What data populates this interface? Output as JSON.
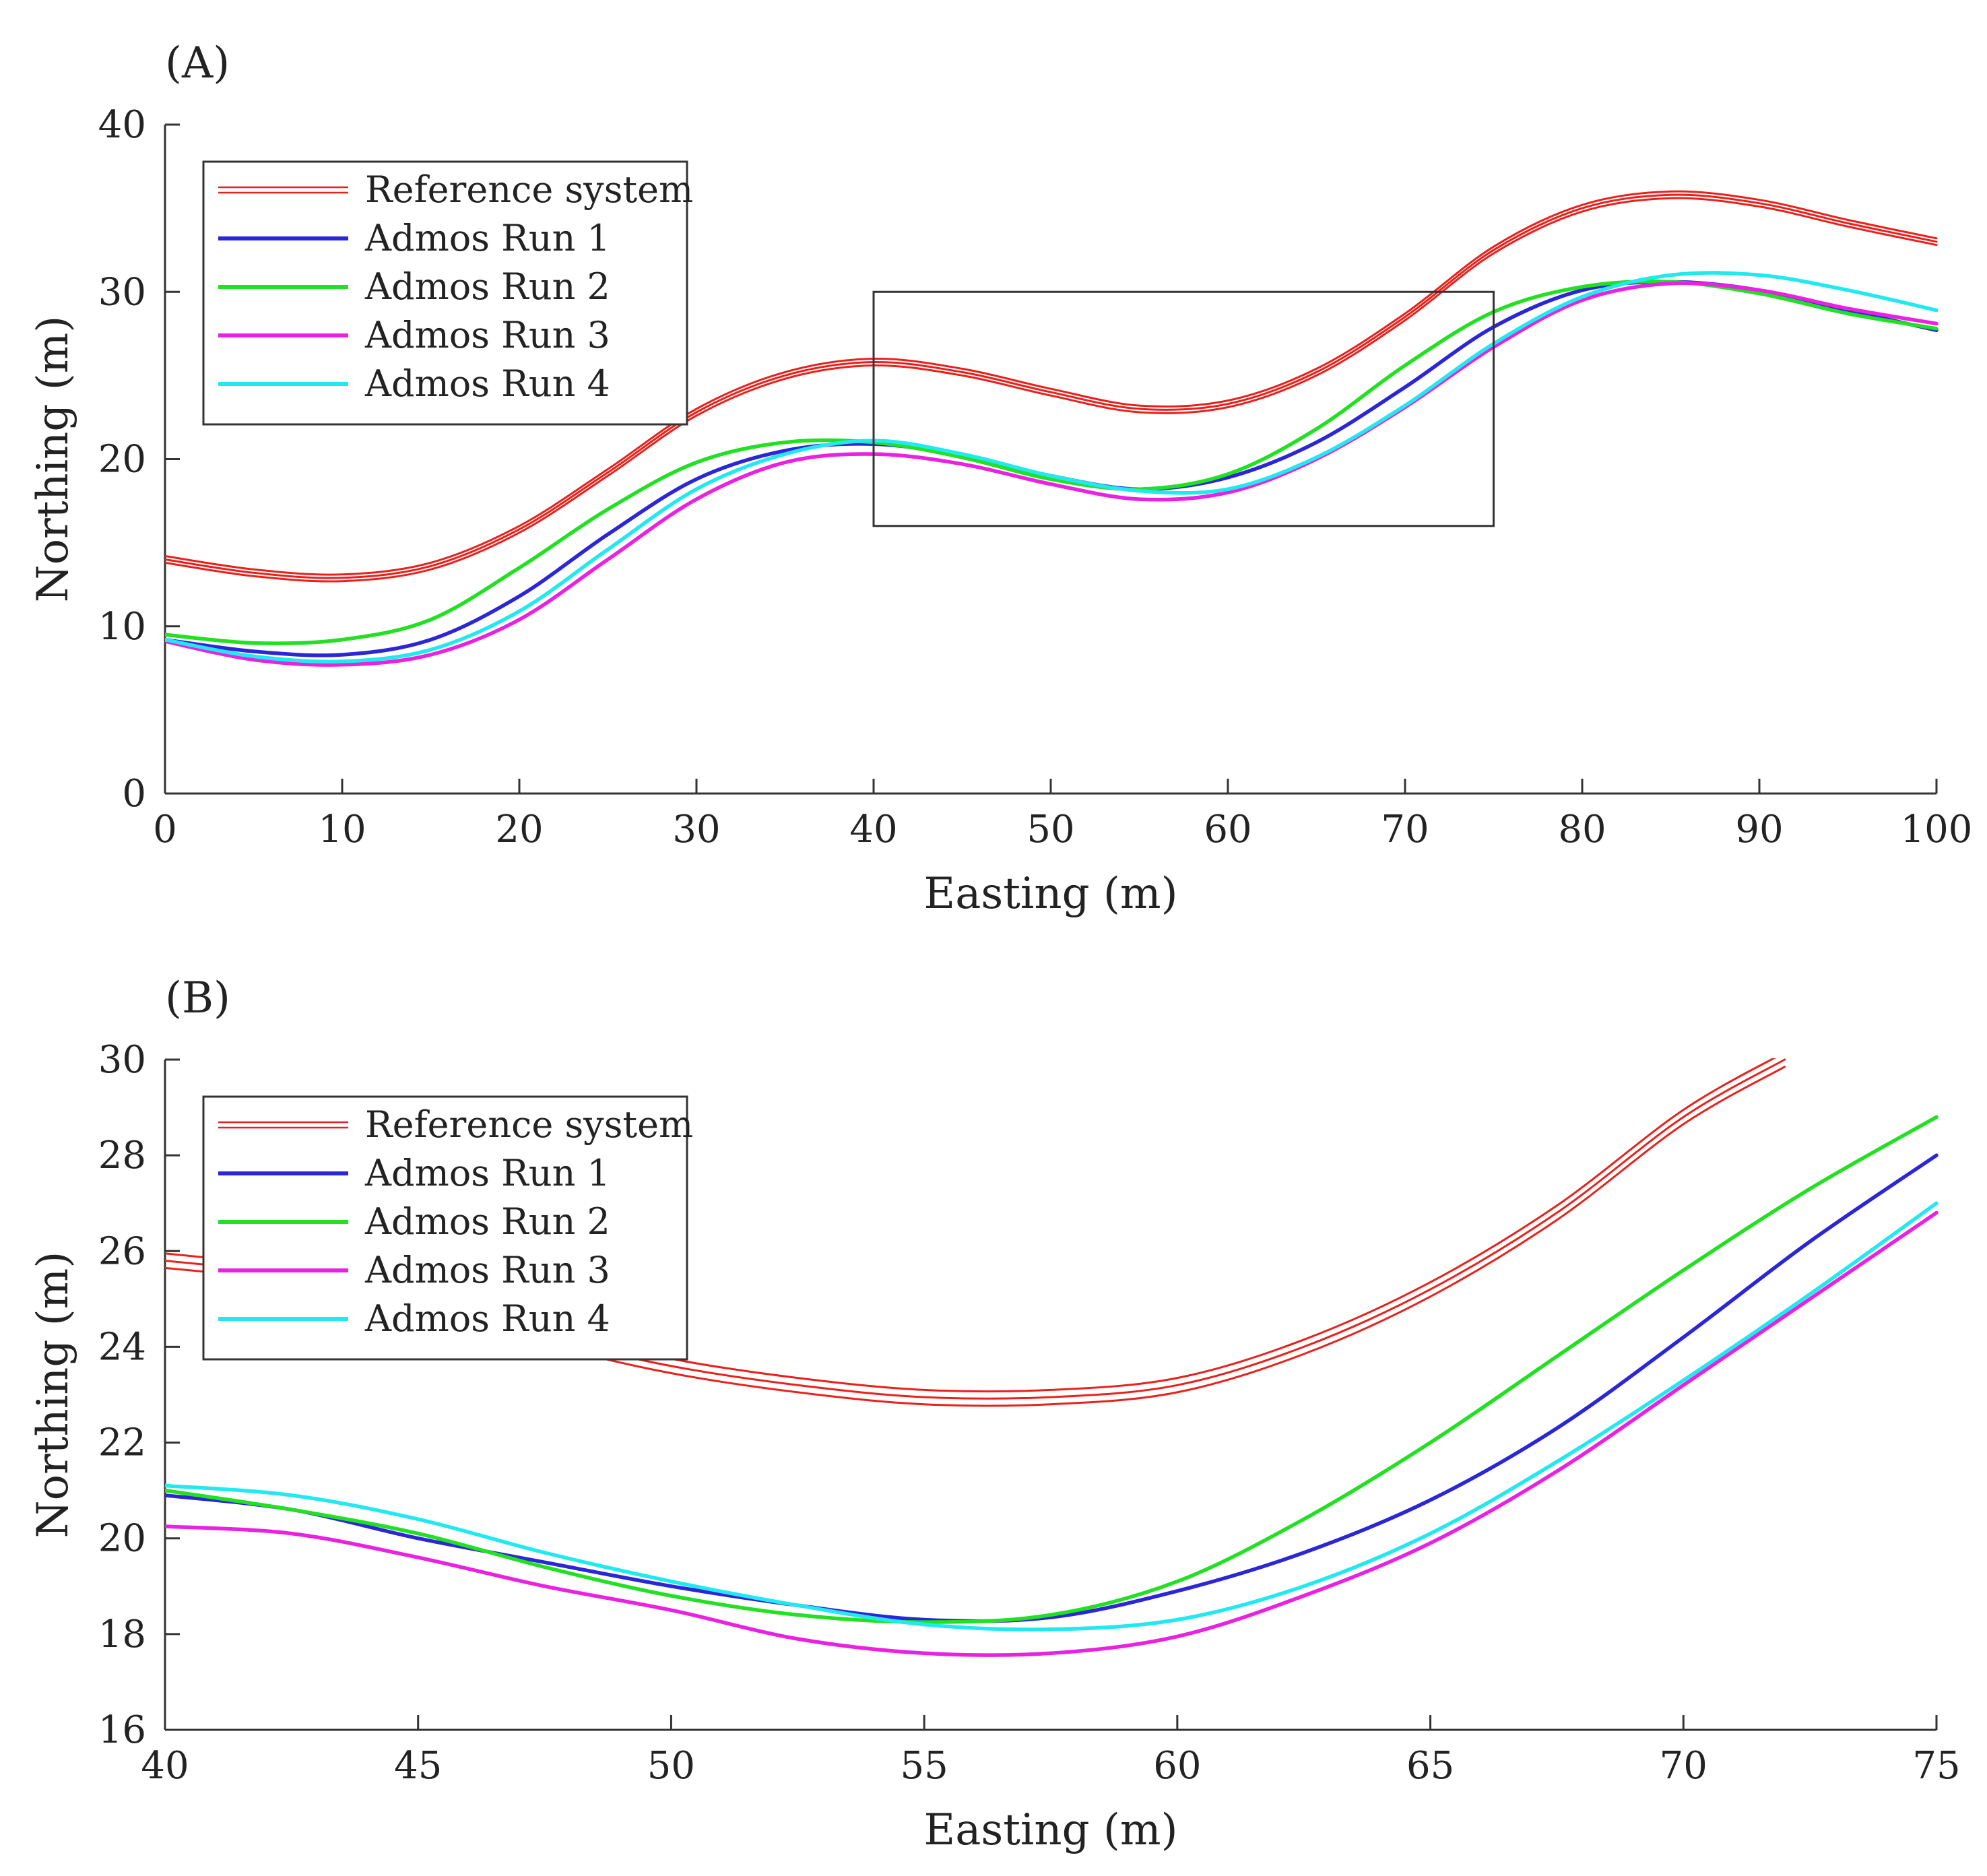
{
  "chart_data": [
    {
      "type": "line",
      "panel_label": "(A)",
      "xlabel": "Easting (m)",
      "ylabel": "Northing (m)",
      "xlim": [
        0,
        100
      ],
      "ylim": [
        0,
        40
      ],
      "xticks": [
        0,
        10,
        20,
        30,
        40,
        50,
        60,
        70,
        80,
        90,
        100
      ],
      "yticks": [
        0,
        10,
        20,
        30,
        40
      ],
      "grid": false,
      "legend_position": "top-left",
      "annotation_box": {
        "x": [
          40,
          75
        ],
        "y": [
          16,
          30
        ]
      },
      "series": [
        {
          "name": "Reference system",
          "color": "#e8211c",
          "thin": true,
          "copies": [
            0,
            0.2,
            -0.2
          ],
          "x": [
            0,
            5,
            10,
            15,
            20,
            25,
            30,
            35,
            40,
            45,
            50,
            55,
            60,
            65,
            70,
            75,
            80,
            85,
            90,
            95,
            100
          ],
          "y": [
            14,
            13.2,
            12.9,
            13.6,
            15.8,
            19.2,
            22.8,
            25.0,
            25.8,
            25.2,
            24,
            23,
            23.3,
            25.2,
            28.5,
            32.5,
            35,
            35.8,
            35.3,
            34.1,
            33
          ]
        },
        {
          "name": "Admos Run 1",
          "color": "#2b26d6",
          "x": [
            0,
            5,
            10,
            15,
            20,
            25,
            30,
            35,
            40,
            45,
            50,
            55,
            60,
            65,
            70,
            75,
            80,
            85,
            90,
            95,
            100
          ],
          "y": [
            9.2,
            8.5,
            8.3,
            9.2,
            11.8,
            15.5,
            18.8,
            20.5,
            20.9,
            20.2,
            19,
            18.2,
            18.9,
            21,
            24.3,
            27.9,
            30.1,
            30.6,
            30.1,
            28.9,
            27.7
          ]
        },
        {
          "name": "Admos Run 2",
          "color": "#22e022",
          "x": [
            0,
            5,
            10,
            15,
            20,
            25,
            30,
            35,
            40,
            45,
            50,
            55,
            60,
            65,
            70,
            75,
            80,
            85,
            90,
            95,
            100
          ],
          "y": [
            9.5,
            9,
            9.2,
            10.4,
            13.5,
            17,
            19.8,
            21.0,
            21.0,
            20.1,
            18.8,
            18.2,
            19.1,
            21.8,
            25.6,
            28.8,
            30.3,
            30.6,
            29.9,
            28.7,
            27.8
          ]
        },
        {
          "name": "Admos Run 3",
          "color": "#e822e0",
          "x": [
            0,
            5,
            10,
            15,
            20,
            25,
            30,
            35,
            40,
            45,
            50,
            55,
            60,
            65,
            70,
            75,
            80,
            85,
            90,
            95,
            100
          ],
          "y": [
            9.1,
            8,
            7.7,
            8.3,
            10.4,
            14,
            17.6,
            19.8,
            20.3,
            19.7,
            18.5,
            17.6,
            18,
            20,
            23.1,
            26.7,
            29.5,
            30.5,
            30.1,
            29,
            28.1
          ]
        },
        {
          "name": "Admos Run 4",
          "color": "#22e8f0",
          "x": [
            0,
            5,
            10,
            15,
            20,
            25,
            30,
            35,
            40,
            45,
            50,
            55,
            60,
            65,
            70,
            75,
            80,
            85,
            90,
            95,
            100
          ],
          "y": [
            9.2,
            8.2,
            7.9,
            8.6,
            10.9,
            14.6,
            18.2,
            20.3,
            21.1,
            20.3,
            19,
            18.1,
            18.2,
            20.1,
            23.2,
            26.9,
            29.7,
            31,
            31,
            30.1,
            28.9
          ]
        }
      ]
    },
    {
      "type": "line",
      "panel_label": "(B)",
      "xlabel": "Easting (m)",
      "ylabel": "Northing (m)",
      "xlim": [
        40,
        75
      ],
      "ylim": [
        16,
        30
      ],
      "xticks": [
        40,
        45,
        50,
        55,
        60,
        65,
        70,
        75
      ],
      "yticks": [
        16,
        18,
        20,
        22,
        24,
        26,
        28,
        30
      ],
      "grid": false,
      "legend_position": "top-left",
      "series": [
        {
          "name": "Reference system",
          "color": "#e8211c",
          "thin": true,
          "copies": [
            0,
            0.15,
            -0.15
          ],
          "x": [
            40,
            42.5,
            45,
            47.5,
            50,
            52.5,
            55,
            57.5,
            60,
            62.5,
            65,
            67.5,
            70,
            72
          ],
          "y": [
            25.8,
            25.5,
            24.9,
            24.2,
            23.6,
            23.2,
            22.95,
            22.95,
            23.2,
            24,
            25.2,
            26.8,
            28.8,
            30
          ]
        },
        {
          "name": "Admos Run 1",
          "color": "#2b26d6",
          "x": [
            40,
            42.5,
            45,
            47.5,
            50,
            52.5,
            55,
            57.5,
            60,
            62.5,
            65,
            67.5,
            70,
            72.5,
            75
          ],
          "y": [
            20.9,
            20.6,
            20,
            19.5,
            19,
            18.6,
            18.3,
            18.35,
            18.9,
            19.7,
            20.8,
            22.3,
            24.2,
            26.2,
            28
          ]
        },
        {
          "name": "Admos Run 2",
          "color": "#22e022",
          "x": [
            40,
            42.5,
            45,
            47.5,
            50,
            52.5,
            55,
            57.5,
            60,
            62.5,
            65,
            67.5,
            70,
            72.5,
            75
          ],
          "y": [
            21,
            20.6,
            20.1,
            19.4,
            18.8,
            18.4,
            18.25,
            18.4,
            19.1,
            20.4,
            22,
            23.8,
            25.6,
            27.3,
            28.8
          ]
        },
        {
          "name": "Admos Run 3",
          "color": "#e822e0",
          "x": [
            40,
            42.5,
            45,
            47.5,
            50,
            52.5,
            55,
            57.5,
            60,
            62.5,
            65,
            67.5,
            70,
            72.5,
            75
          ],
          "y": [
            20.25,
            20.1,
            19.6,
            19,
            18.5,
            17.9,
            17.6,
            17.6,
            17.95,
            18.8,
            19.9,
            21.4,
            23.2,
            25,
            26.8
          ]
        },
        {
          "name": "Admos Run 4",
          "color": "#22e8f0",
          "x": [
            40,
            42.5,
            45,
            47.5,
            50,
            52.5,
            55,
            57.5,
            60,
            62.5,
            65,
            67.5,
            70,
            72.5,
            75
          ],
          "y": [
            21.1,
            20.9,
            20.4,
            19.7,
            19.1,
            18.6,
            18.2,
            18.1,
            18.3,
            19,
            20.1,
            21.6,
            23.3,
            25.1,
            27
          ]
        }
      ]
    }
  ]
}
